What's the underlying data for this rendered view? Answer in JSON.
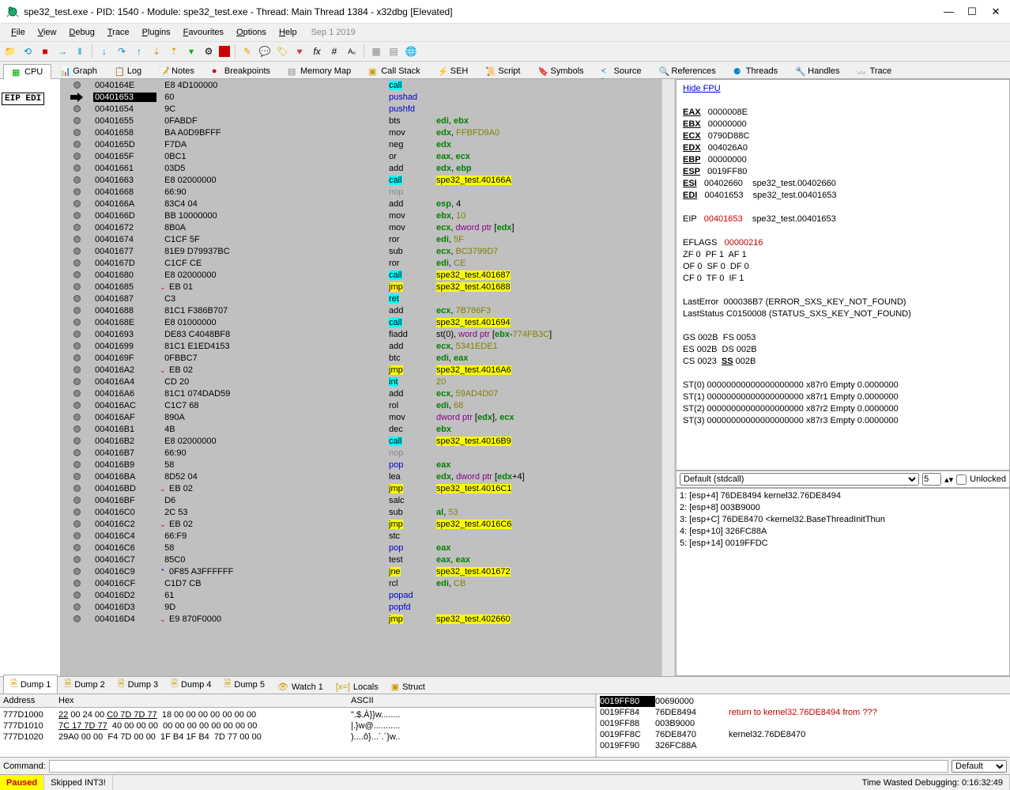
{
  "title": "spe32_test.exe - PID: 1540 - Module: spe32_test.exe - Thread: Main Thread 1384 - x32dbg [Elevated]",
  "menu": [
    "File",
    "View",
    "Debug",
    "Trace",
    "Plugins",
    "Favourites",
    "Options",
    "Help"
  ],
  "menu_date": "Sep 1 2019",
  "viewtabs": [
    "CPU",
    "Graph",
    "Log",
    "Notes",
    "Breakpoints",
    "Memory Map",
    "Call Stack",
    "SEH",
    "Script",
    "Symbols",
    "Source",
    "References",
    "Threads",
    "Handles",
    "Trace"
  ],
  "eip_marker": "EIP EDI",
  "fpu_link": "Hide FPU",
  "registers": [
    {
      "n": "EAX",
      "v": "0000008E",
      "c": ""
    },
    {
      "n": "EBX",
      "v": "00000000",
      "c": ""
    },
    {
      "n": "ECX",
      "v": "0790D88C",
      "c": ""
    },
    {
      "n": "EDX",
      "v": "004026A0",
      "c": "<spe32_test.JMP.&ExitProcess>"
    },
    {
      "n": "EBP",
      "v": "00000000",
      "c": ""
    },
    {
      "n": "ESP",
      "v": "0019FF80",
      "c": ""
    },
    {
      "n": "ESI",
      "v": "00402660",
      "c": "spe32_test.00402660"
    },
    {
      "n": "EDI",
      "v": "00401653",
      "c": "spe32_test.00401653"
    }
  ],
  "eip": {
    "n": "EIP",
    "v": "00401653",
    "c": "spe32_test.00401653"
  },
  "eflags": {
    "label": "EFLAGS",
    "value": "00000216"
  },
  "flags": [
    "ZF 0  PF 1  AF 1",
    "OF 0  SF 0  DF 0",
    "CF 0  TF 0  IF 1"
  ],
  "lasterr": "LastError  000036B7 (ERROR_SXS_KEY_NOT_FOUND)",
  "laststat": "LastStatus C0150008 (STATUS_SXS_KEY_NOT_FOUND)",
  "segs": [
    "GS 002B  FS 0053",
    "ES 002B  DS 002B",
    "CS 0023  SS 002B"
  ],
  "fpu": [
    "ST(0) 00000000000000000000 x87r0 Empty 0.0000000",
    "ST(1) 00000000000000000000 x87r1 Empty 0.0000000",
    "ST(2) 00000000000000000000 x87r2 Empty 0.0000000",
    "ST(3) 00000000000000000000 x87r3 Empty 0.0000000"
  ],
  "stackctl_label": "Default (stdcall)",
  "stackctl_n": "5",
  "stackctl_unlock": "Unlocked",
  "stacklist": [
    "1: [esp+4] 76DE8494 kernel32.76DE8494",
    "2: [esp+8] 003B9000",
    "3: [esp+C] 76DE8470 <kernel32.BaseThreadInitThun",
    "4: [esp+10] 326FC88A",
    "5: [esp+14] 0019FFDC"
  ],
  "bottomtabs": [
    "Dump 1",
    "Dump 2",
    "Dump 3",
    "Dump 4",
    "Dump 5",
    "Watch 1",
    "Locals",
    "Struct"
  ],
  "dump_headers": [
    "Address",
    "Hex",
    "ASCII"
  ],
  "dump_rows": [
    {
      "a": "777D1000",
      "h": "22 00 24 00 C0 7D 7D 77  18 00 00 00 00 00 00 00",
      "s": "\".$.À}}w........"
    },
    {
      "a": "777D1010",
      "h": "7C 17 7D 77  40 00 00 00  00 00 00 00 00 00 00 00",
      "s": "|.}w@..........."
    },
    {
      "a": "777D1020",
      "h": "29A0 00 00  F4 7D 00 00  1F B4 1F B4  7D 77 00 00",
      "s": ")....ô}...´.´}w.."
    }
  ],
  "stack2": [
    {
      "a": "0019FF80",
      "v": "00690000",
      "c": "",
      "hl": true
    },
    {
      "a": "0019FF84",
      "v": "76DE8494",
      "c": "return to kernel32.76DE8494 from ???",
      "red": true
    },
    {
      "a": "0019FF88",
      "v": "003B9000",
      "c": ""
    },
    {
      "a": "0019FF8C",
      "v": "76DE8470",
      "c": "kernel32.76DE8470"
    },
    {
      "a": "0019FF90",
      "v": "326FC88A",
      "c": ""
    }
  ],
  "cmd_label": "Command:",
  "cmd_combo": "Default",
  "status_paused": "Paused",
  "status_msg": "Skipped INT3!",
  "status_time": "Time Wasted Debugging: 0:16:32:49",
  "disasm": [
    {
      "a": "0040164E",
      "b": "E8 4D100000",
      "m": "call",
      "args": "<JMP.&ExitProcess>",
      "mt": "call",
      "hl": "y"
    },
    {
      "a": "00401653",
      "b": "60",
      "m": "pushad",
      "args": "",
      "mt": "blue",
      "cur": true
    },
    {
      "a": "00401654",
      "b": "9C",
      "m": "pushfd",
      "args": "",
      "mt": "blue"
    },
    {
      "a": "00401655",
      "b": "0FABDF",
      "m": "bts",
      "args": "edi, ebx",
      "mt": "n"
    },
    {
      "a": "00401658",
      "b": "BA A0D9BFFF",
      "m": "mov",
      "args": "edx, FFBFD9A0",
      "mt": "n"
    },
    {
      "a": "0040165D",
      "b": "F7DA",
      "m": "neg",
      "args": "edx",
      "mt": "n"
    },
    {
      "a": "0040165F",
      "b": "0BC1",
      "m": "or",
      "args": "eax, ecx",
      "mt": "n"
    },
    {
      "a": "00401661",
      "b": "03D5",
      "m": "add",
      "args": "edx, ebp",
      "mt": "n"
    },
    {
      "a": "00401663",
      "b": "E8 02000000",
      "m": "call",
      "args": "spe32_test.40166A",
      "mt": "call",
      "hl": "y"
    },
    {
      "a": "00401668",
      "b": "66:90",
      "m": "nop",
      "args": "",
      "mt": "gray"
    },
    {
      "a": "0040166A",
      "b": "83C4 04",
      "m": "add",
      "args": "esp, 4",
      "mt": "n"
    },
    {
      "a": "0040166D",
      "b": "BB 10000000",
      "m": "mov",
      "args": "ebx, 10",
      "mt": "n"
    },
    {
      "a": "00401672",
      "b": "8B0A",
      "m": "mov",
      "args": "ecx, dword ptr [edx]",
      "mt": "n"
    },
    {
      "a": "00401674",
      "b": "C1CF 5F",
      "m": "ror",
      "args": "edi, 5F",
      "mt": "n"
    },
    {
      "a": "00401677",
      "b": "81E9 D79937BC",
      "m": "sub",
      "args": "ecx, BC3799D7",
      "mt": "n"
    },
    {
      "a": "0040167D",
      "b": "C1CF CE",
      "m": "ror",
      "args": "edi, CE",
      "mt": "n"
    },
    {
      "a": "00401680",
      "b": "E8 02000000",
      "m": "call",
      "args": "spe32_test.401687",
      "mt": "call",
      "hl": "y"
    },
    {
      "a": "00401685",
      "b": "EB 01",
      "m": "jmp",
      "args": "spe32_test.401688",
      "mt": "jmp",
      "hl": "y",
      "chev": "d"
    },
    {
      "a": "00401687",
      "b": "C3",
      "m": "ret",
      "args": "",
      "mt": "ret"
    },
    {
      "a": "00401688",
      "b": "81C1 F386B707",
      "m": "add",
      "args": "ecx, 7B786F3",
      "mt": "n"
    },
    {
      "a": "0040168E",
      "b": "E8 01000000",
      "m": "call",
      "args": "spe32_test.401694",
      "mt": "call",
      "hl": "y"
    },
    {
      "a": "00401693",
      "b": "DE83 C4048BF8",
      "m": "fiadd",
      "args": "st(0), word ptr [ebx-774FB3C]",
      "mt": "n"
    },
    {
      "a": "00401699",
      "b": "81C1 E1ED4153",
      "m": "add",
      "args": "ecx, 5341EDE1",
      "mt": "n"
    },
    {
      "a": "0040169F",
      "b": "0FBBC7",
      "m": "btc",
      "args": "edi, eax",
      "mt": "n"
    },
    {
      "a": "004016A2",
      "b": "EB 02",
      "m": "jmp",
      "args": "spe32_test.4016A6",
      "mt": "jmp",
      "hl": "y",
      "chev": "d"
    },
    {
      "a": "004016A4",
      "b": "CD 20",
      "m": "int",
      "args": "20",
      "mt": "int"
    },
    {
      "a": "004016A6",
      "b": "81C1 074DAD59",
      "m": "add",
      "args": "ecx, 59AD4D07",
      "mt": "n"
    },
    {
      "a": "004016AC",
      "b": "C1C7 68",
      "m": "rol",
      "args": "edi, 68",
      "mt": "n"
    },
    {
      "a": "004016AF",
      "b": "890A",
      "m": "mov",
      "args": "dword ptr [edx], ecx",
      "mt": "n"
    },
    {
      "a": "004016B1",
      "b": "4B",
      "m": "dec",
      "args": "ebx",
      "mt": "n"
    },
    {
      "a": "004016B2",
      "b": "E8 02000000",
      "m": "call",
      "args": "spe32_test.4016B9",
      "mt": "call",
      "hl": "y"
    },
    {
      "a": "004016B7",
      "b": "66:90",
      "m": "nop",
      "args": "",
      "mt": "gray"
    },
    {
      "a": "004016B9",
      "b": "58",
      "m": "pop",
      "args": "eax",
      "mt": "blue"
    },
    {
      "a": "004016BA",
      "b": "8D52 04",
      "m": "lea",
      "args": "edx, dword ptr [edx+4]",
      "mt": "n"
    },
    {
      "a": "004016BD",
      "b": "EB 02",
      "m": "jmp",
      "args": "spe32_test.4016C1",
      "mt": "jmp",
      "hl": "y",
      "chev": "d"
    },
    {
      "a": "004016BF",
      "b": "D6",
      "m": "salc",
      "args": "",
      "mt": "n"
    },
    {
      "a": "004016C0",
      "b": "2C 53",
      "m": "sub",
      "args": "al, 53",
      "mt": "n"
    },
    {
      "a": "004016C2",
      "b": "EB 02",
      "m": "jmp",
      "args": "spe32_test.4016C6",
      "mt": "jmp",
      "hl": "y",
      "chev": "d"
    },
    {
      "a": "004016C4",
      "b": "66:F9",
      "m": "stc",
      "args": "",
      "mt": "n"
    },
    {
      "a": "004016C6",
      "b": "58",
      "m": "pop",
      "args": "eax",
      "mt": "blue"
    },
    {
      "a": "004016C7",
      "b": "85C0",
      "m": "test",
      "args": "eax, eax",
      "mt": "n"
    },
    {
      "a": "004016C9",
      "b": "0F85 A3FFFFFF",
      "m": "jne",
      "args": "spe32_test.401672",
      "mt": "jmp",
      "hl": "y",
      "chev": "u"
    },
    {
      "a": "004016CF",
      "b": "C1D7 CB",
      "m": "rcl",
      "args": "edi, CB",
      "mt": "n"
    },
    {
      "a": "004016D2",
      "b": "61",
      "m": "popad",
      "args": "",
      "mt": "blue"
    },
    {
      "a": "004016D3",
      "b": "9D",
      "m": "popfd",
      "args": "",
      "mt": "blue"
    },
    {
      "a": "004016D4",
      "b": "E9 870F0000",
      "m": "jmp",
      "args": "spe32_test.402660",
      "mt": "jmp",
      "hl": "y",
      "chev": "d"
    }
  ],
  "colors": {
    "bg_gray": "#c0c0c0",
    "hl_yellow": "#ffff00",
    "hl_cyan": "#00ffff",
    "reg_green": "#008000",
    "num_olive": "#808000",
    "red": "#c00000",
    "blue": "#0000c0"
  }
}
